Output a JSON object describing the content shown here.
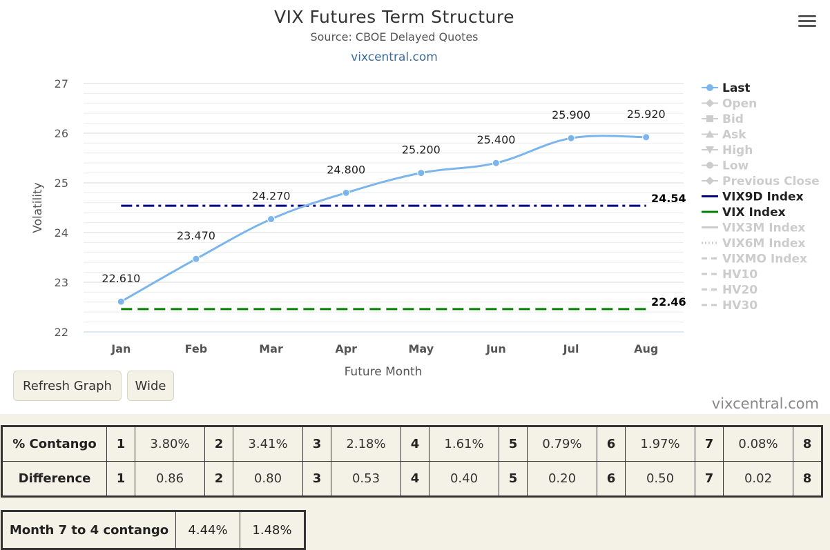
{
  "chart_title": "VIX Futures Term Structure",
  "chart_subtitle": "Source: CBOE Delayed Quotes",
  "chart_link": "vixcentral.com",
  "menu_icon": "hamburger-menu-icon",
  "buttons": {
    "refresh": "Refresh Graph",
    "wide": "Wide"
  },
  "watermark": "vixcentral.com",
  "chart_data": {
    "type": "line",
    "title": "VIX Futures Term Structure",
    "subtitle": "Source: CBOE Delayed Quotes",
    "xlabel": "Future Month",
    "ylabel": "Volatility",
    "categories": [
      "Jan",
      "Feb",
      "Mar",
      "Apr",
      "May",
      "Jun",
      "Jul",
      "Aug"
    ],
    "ylim": [
      22,
      27
    ],
    "yticks": [
      22,
      23,
      24,
      25,
      26,
      27
    ],
    "grid": true,
    "legend_position": "right",
    "series": [
      {
        "name": "Last",
        "values": [
          22.61,
          23.47,
          24.27,
          24.8,
          25.2,
          25.4,
          25.9,
          25.92
        ],
        "labels": [
          "22.610",
          "23.470",
          "24.270",
          "24.800",
          "25.200",
          "25.400",
          "25.900",
          "25.920"
        ],
        "color": "#7cb5ec",
        "style": "spline-markers"
      },
      {
        "name": "VIX9D Index",
        "value": 24.54,
        "label": "24.54",
        "color": "#000080",
        "style": "dash-dot"
      },
      {
        "name": "VIX Index",
        "value": 22.46,
        "label": "22.46",
        "color": "#008000",
        "style": "dash"
      }
    ],
    "legend": [
      {
        "name": "Last",
        "active": true,
        "color": "#7cb5ec",
        "symbol": "circle"
      },
      {
        "name": "Open",
        "active": false,
        "symbol": "diamond"
      },
      {
        "name": "Bid",
        "active": false,
        "symbol": "square"
      },
      {
        "name": "Ask",
        "active": false,
        "symbol": "triangle"
      },
      {
        "name": "High",
        "active": false,
        "symbol": "triangle-down"
      },
      {
        "name": "Low",
        "active": false,
        "symbol": "circle"
      },
      {
        "name": "Previous Close",
        "active": false,
        "symbol": "diamond"
      },
      {
        "name": "VIX9D Index",
        "active": true,
        "color": "#000080",
        "symbol": "line"
      },
      {
        "name": "VIX Index",
        "active": true,
        "color": "#008000",
        "symbol": "line"
      },
      {
        "name": "VIX3M Index",
        "active": false,
        "symbol": "line"
      },
      {
        "name": "VIX6M Index",
        "active": false,
        "symbol": "dotted"
      },
      {
        "name": "VIXMO Index",
        "active": false,
        "symbol": "dashed"
      },
      {
        "name": "HV10",
        "active": false,
        "symbol": "dashed"
      },
      {
        "name": "HV20",
        "active": false,
        "symbol": "dashed"
      },
      {
        "name": "HV30",
        "active": false,
        "symbol": "dashed"
      }
    ]
  },
  "contango_table": {
    "rows": [
      {
        "label": "% Contango",
        "cells": [
          [
            "1",
            "3.80%"
          ],
          [
            "2",
            "3.41%"
          ],
          [
            "3",
            "2.18%"
          ],
          [
            "4",
            "1.61%"
          ],
          [
            "5",
            "0.79%"
          ],
          [
            "6",
            "1.97%"
          ],
          [
            "7",
            "0.08%"
          ],
          [
            "8",
            ""
          ]
        ]
      },
      {
        "label": "Difference",
        "cells": [
          [
            "1",
            "0.86"
          ],
          [
            "2",
            "0.80"
          ],
          [
            "3",
            "0.53"
          ],
          [
            "4",
            "0.40"
          ],
          [
            "5",
            "0.20"
          ],
          [
            "6",
            "0.50"
          ],
          [
            "7",
            "0.02"
          ],
          [
            "8",
            ""
          ]
        ]
      }
    ]
  },
  "month74": {
    "label": "Month 7 to 4 contango",
    "values": [
      "4.44%",
      "1.48%"
    ]
  }
}
